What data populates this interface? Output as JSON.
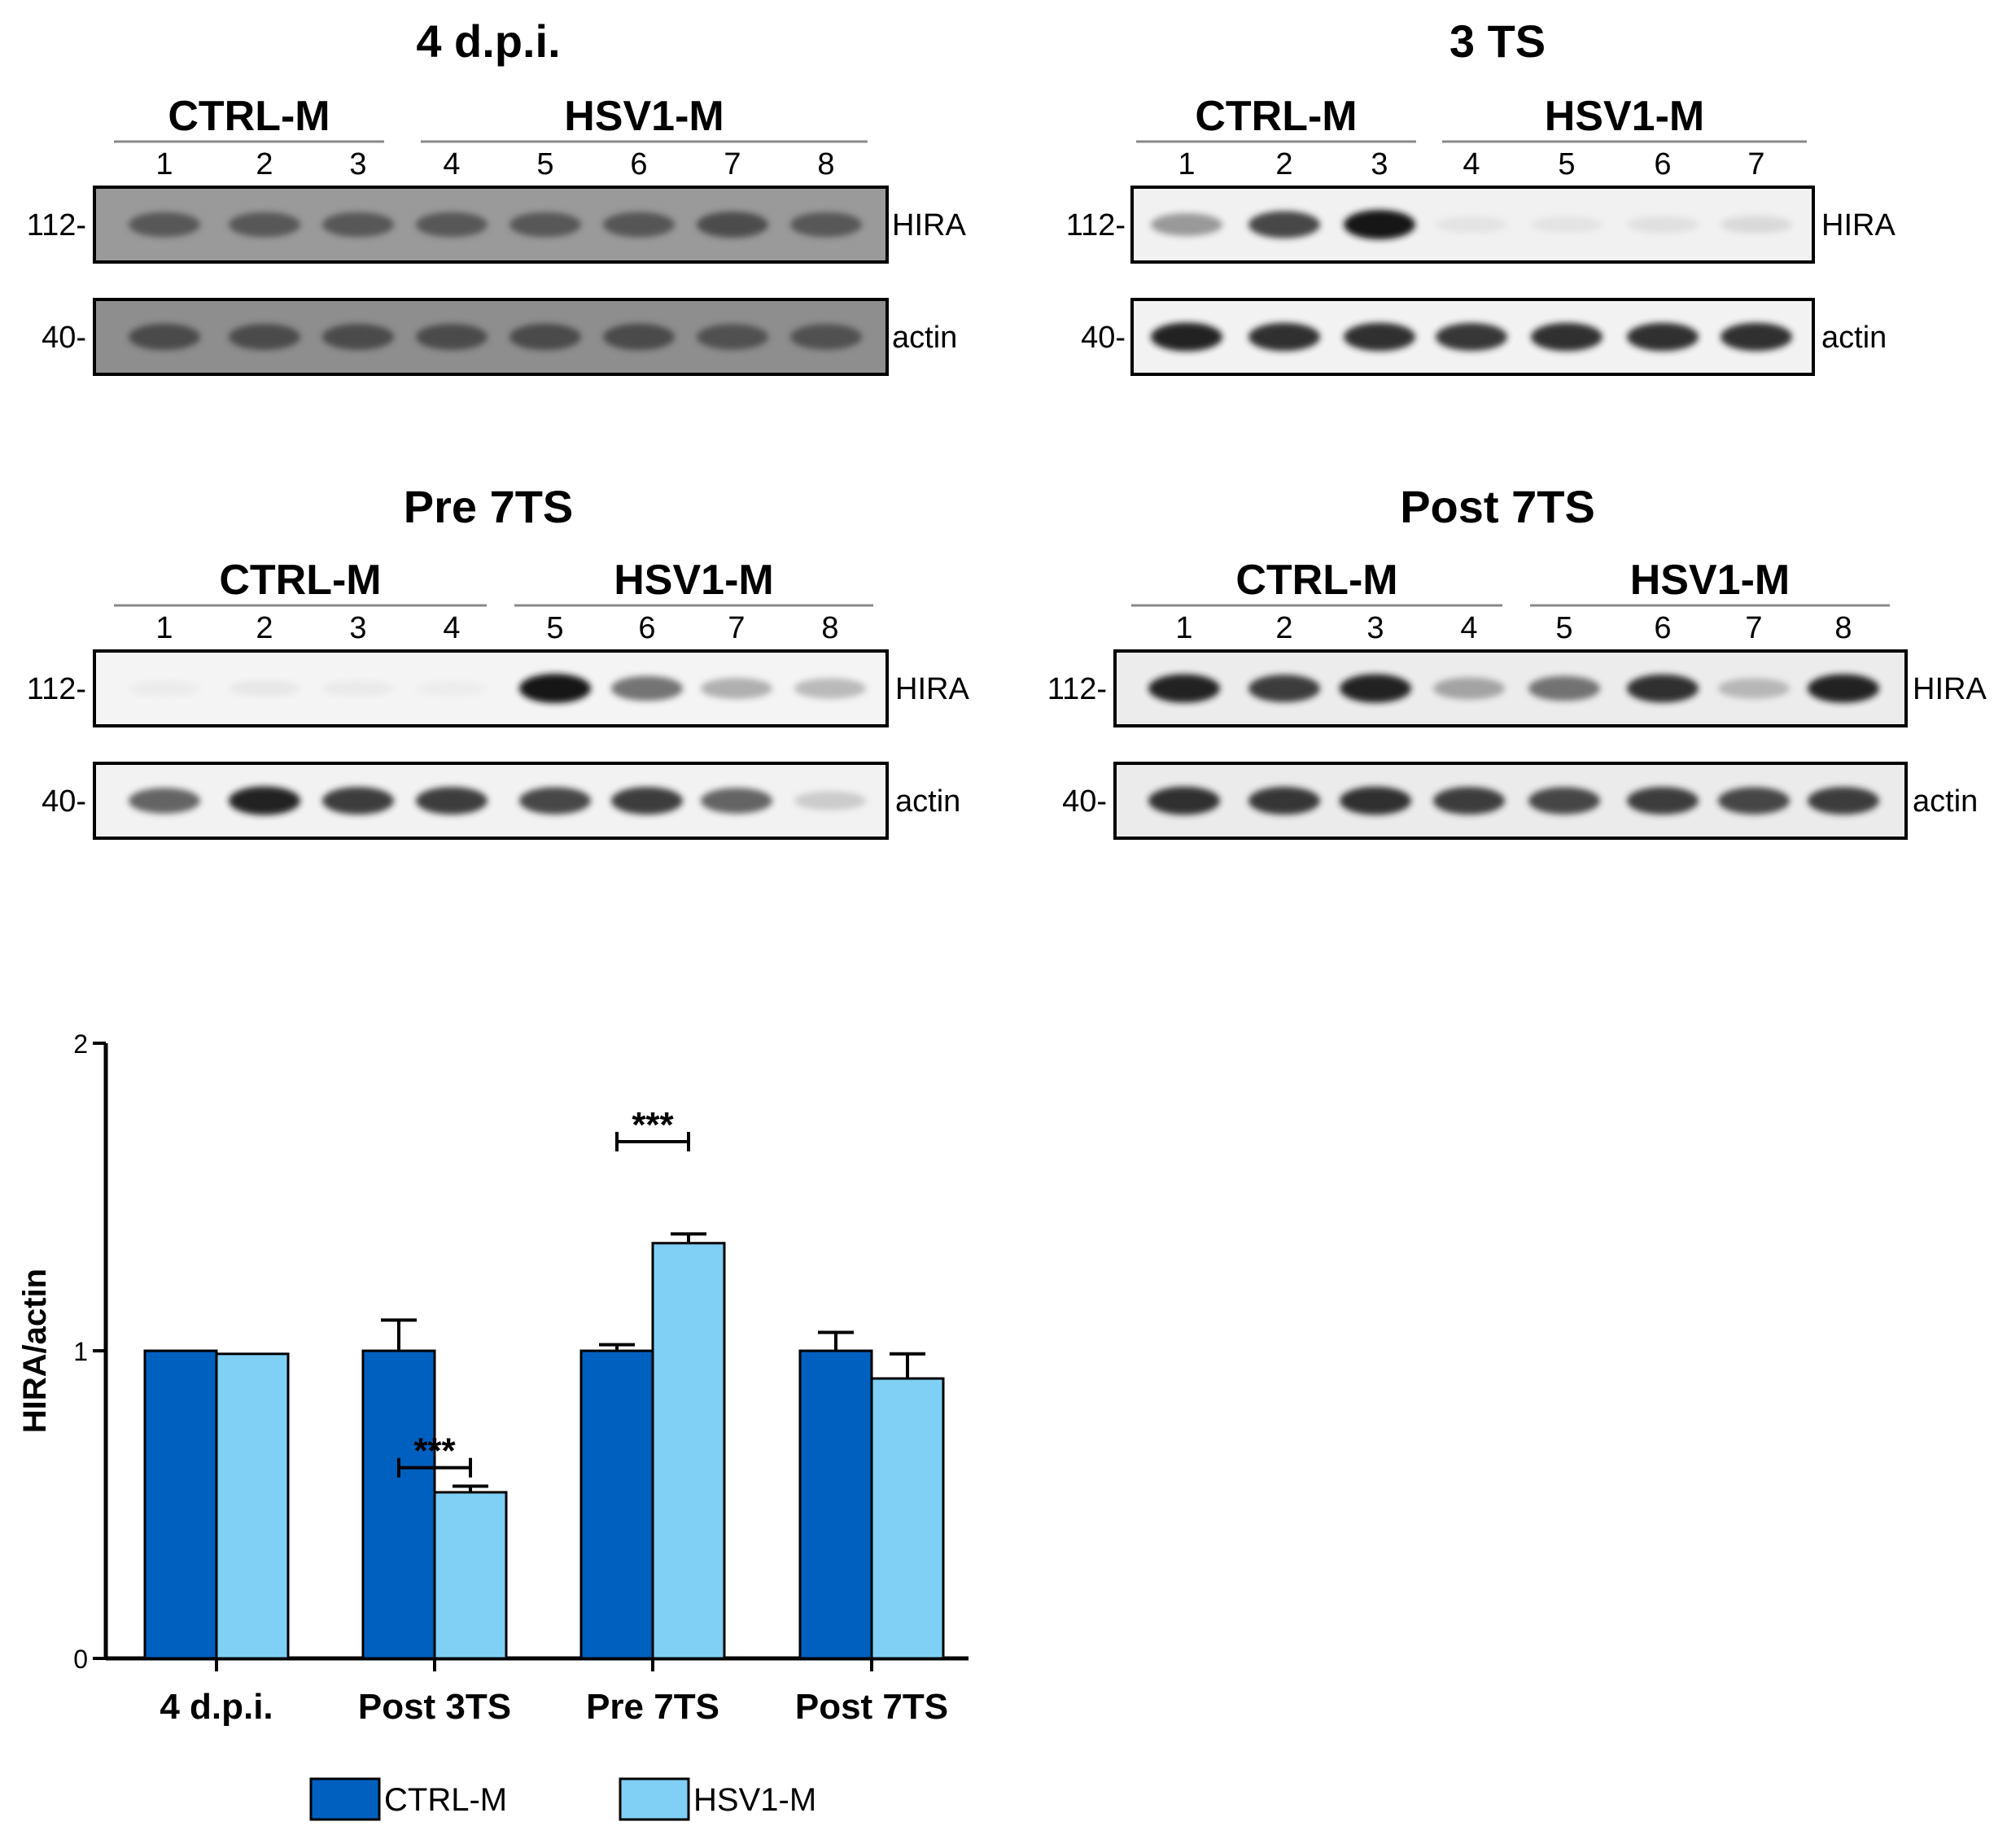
{
  "blots": [
    {
      "title": "4 d.p.i.",
      "groups": [
        {
          "label": "CTRL-M",
          "lanes": [
            "1",
            "2",
            "3"
          ]
        },
        {
          "label": "HSV1-M",
          "lanes": [
            "4",
            "5",
            "6",
            "7",
            "8"
          ]
        }
      ],
      "rows": [
        {
          "protein": "HIRA",
          "marker": "112-",
          "background": "#9a9a9a",
          "band_intensity": [
            0.7,
            0.7,
            0.7,
            0.7,
            0.7,
            0.72,
            0.78,
            0.7
          ]
        },
        {
          "protein": "actin",
          "marker": "40-",
          "background": "#8e8e8e",
          "band_intensity": [
            0.8,
            0.78,
            0.78,
            0.78,
            0.8,
            0.8,
            0.75,
            0.75
          ]
        }
      ]
    },
    {
      "title": "3 TS",
      "groups": [
        {
          "label": "CTRL-M",
          "lanes": [
            "1",
            "2",
            "3"
          ]
        },
        {
          "label": "HSV1-M",
          "lanes": [
            "4",
            "5",
            "6",
            "7"
          ]
        }
      ],
      "rows": [
        {
          "protein": "HIRA",
          "marker": "112-",
          "background": "#f1f1f1",
          "band_intensity": [
            0.55,
            0.85,
            1.0,
            0.12,
            0.12,
            0.15,
            0.2
          ]
        },
        {
          "protein": "actin",
          "marker": "40-",
          "background": "#f2f2f2",
          "band_intensity": [
            0.95,
            0.92,
            0.92,
            0.9,
            0.92,
            0.92,
            0.92
          ]
        }
      ]
    },
    {
      "title": "Pre 7TS",
      "groups": [
        {
          "label": "CTRL-M",
          "lanes": [
            "1",
            "2",
            "3",
            "4"
          ]
        },
        {
          "label": "HSV1-M",
          "lanes": [
            "5",
            "6",
            "7",
            "8"
          ]
        }
      ],
      "rows": [
        {
          "protein": "HIRA",
          "marker": "112-",
          "background": "#f4f4f4",
          "band_intensity": [
            0.05,
            0.1,
            0.07,
            0.04,
            1.0,
            0.7,
            0.45,
            0.4
          ]
        },
        {
          "protein": "actin",
          "marker": "40-",
          "background": "#f2f2f2",
          "band_intensity": [
            0.75,
            0.95,
            0.88,
            0.88,
            0.85,
            0.88,
            0.75,
            0.3
          ]
        }
      ]
    },
    {
      "title": "Post 7TS",
      "groups": [
        {
          "label": "CTRL-M",
          "lanes": [
            "1",
            "2",
            "3",
            "4"
          ]
        },
        {
          "label": "HSV1-M",
          "lanes": [
            "5",
            "6",
            "7",
            "8"
          ]
        }
      ],
      "rows": [
        {
          "protein": "HIRA",
          "marker": "112-",
          "background": "#ececec",
          "band_intensity": [
            0.95,
            0.88,
            0.95,
            0.5,
            0.7,
            0.92,
            0.4,
            0.95
          ]
        },
        {
          "protein": "actin",
          "marker": "40-",
          "background": "#ebebeb",
          "band_intensity": [
            0.92,
            0.9,
            0.92,
            0.88,
            0.85,
            0.88,
            0.85,
            0.88
          ]
        }
      ]
    }
  ],
  "chart_data": {
    "type": "bar",
    "ylabel": "HIRA/actin",
    "ylim": [
      0,
      2
    ],
    "yticks": [
      "0",
      "1",
      "2"
    ],
    "categories": [
      "4 d.p.i.",
      "Post 3TS",
      "Pre 7TS",
      "Post 7TS"
    ],
    "series": [
      {
        "name": "CTRL-M",
        "color": "#0060c0",
        "values": [
          1.0,
          1.0,
          1.0,
          1.0
        ],
        "errors": [
          0.0,
          0.1,
          0.02,
          0.06
        ]
      },
      {
        "name": "HSV1-M",
        "color": "#80d0f5",
        "values": [
          0.99,
          0.54,
          1.35,
          0.91
        ],
        "errors": [
          0.0,
          0.02,
          0.03,
          0.08
        ]
      }
    ],
    "significance": [
      {
        "category": "Post 3TS",
        "label": "***",
        "y": 0.62
      },
      {
        "category": "Pre 7TS",
        "label": "***",
        "y": 1.68
      }
    ],
    "legend_position": "bottom"
  }
}
